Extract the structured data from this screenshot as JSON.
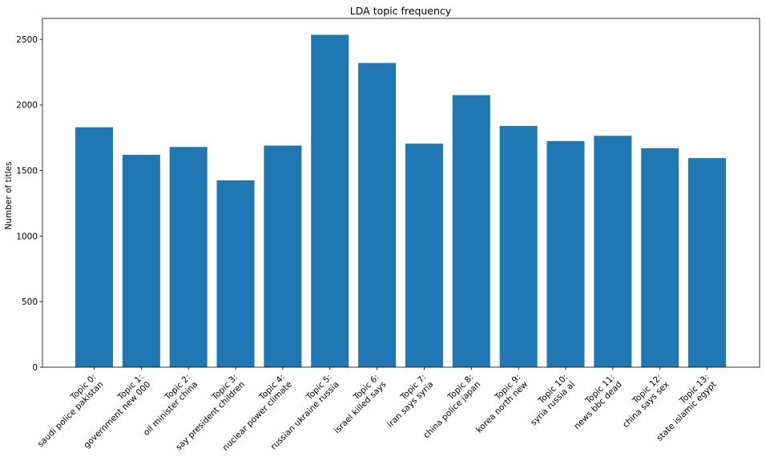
{
  "chart_data": {
    "type": "bar",
    "title": "LDA topic frequency",
    "xlabel": "",
    "ylabel": "Number of titles",
    "ylim": [
      0,
      2660
    ],
    "yticks": [
      0,
      500,
      1000,
      1500,
      2000,
      2500
    ],
    "grid": false,
    "bar_color": "#1f77b4",
    "categories": [
      [
        "Topic 0:",
        "saudi police pakistan"
      ],
      [
        "Topic 1:",
        "government new 000"
      ],
      [
        "Topic 2:",
        "oil minister china"
      ],
      [
        "Topic 3:",
        "say president children"
      ],
      [
        "Topic 4:",
        "nuclear power climate"
      ],
      [
        "Topic 5:",
        "russian ukraine russia"
      ],
      [
        "Topic 6:",
        "israel killed says"
      ],
      [
        "Topic 7:",
        "iran says syria"
      ],
      [
        "Topic 8:",
        "china police japan"
      ],
      [
        "Topic 9:",
        "korea north new"
      ],
      [
        "Topic 10:",
        "syria russia al"
      ],
      [
        "Topic 11:",
        "news bbc dead"
      ],
      [
        "Topic 12:",
        "china says sex"
      ],
      [
        "Topic 13:",
        "state islamic egypt"
      ]
    ],
    "values": [
      1830,
      1620,
      1680,
      1425,
      1690,
      2535,
      2320,
      1705,
      2075,
      1840,
      1725,
      1765,
      1670,
      1595
    ]
  }
}
